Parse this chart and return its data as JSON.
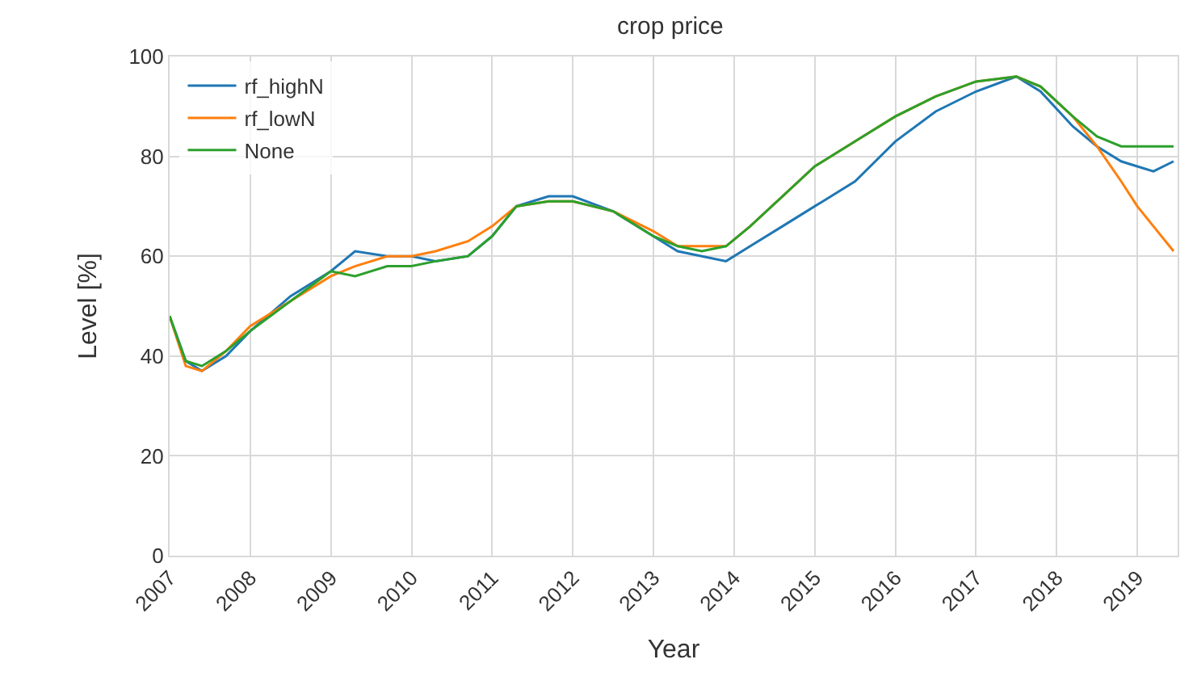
{
  "chart_data": {
    "type": "line",
    "title": "crop price",
    "xlabel": "Year",
    "ylabel": "Level [%]",
    "x": [
      2007.0,
      2007.2,
      2007.4,
      2007.7,
      2008.0,
      2008.5,
      2009.0,
      2009.3,
      2009.7,
      2010.0,
      2010.3,
      2010.7,
      2011.0,
      2011.3,
      2011.7,
      2012.0,
      2012.5,
      2013.0,
      2013.3,
      2013.6,
      2013.9,
      2014.2,
      2014.6,
      2015.0,
      2015.5,
      2016.0,
      2016.5,
      2017.0,
      2017.5,
      2017.8,
      2018.2,
      2018.5,
      2018.8,
      2019.0,
      2019.2,
      2019.45
    ],
    "series": [
      {
        "name": "rf_highN",
        "color": "#1f77b4",
        "values": [
          48,
          39,
          37,
          40,
          45,
          52,
          57,
          61,
          60,
          60,
          59,
          60,
          64,
          70,
          72,
          72,
          69,
          64,
          61,
          60,
          59,
          62,
          66,
          70,
          75,
          83,
          89,
          93,
          96,
          93,
          86,
          82,
          79,
          78,
          77,
          79
        ]
      },
      {
        "name": "rf_lowN",
        "color": "#ff7f0e",
        "values": [
          48,
          38,
          37,
          41,
          46,
          51,
          56,
          58,
          60,
          60,
          61,
          63,
          66,
          70,
          71,
          71,
          69,
          65,
          62,
          62,
          62,
          66,
          72,
          78,
          83,
          88,
          92,
          95,
          96,
          94,
          88,
          82,
          75,
          70,
          66,
          61
        ]
      },
      {
        "name": "None",
        "color": "#2ca02c",
        "values": [
          48,
          39,
          38,
          41,
          45,
          51,
          57,
          56,
          58,
          58,
          59,
          60,
          64,
          70,
          71,
          71,
          69,
          64,
          62,
          61,
          62,
          66,
          72,
          78,
          83,
          88,
          92,
          95,
          96,
          94,
          88,
          84,
          82,
          82,
          82,
          82
        ]
      }
    ],
    "xlim": [
      2007.0,
      2019.5
    ],
    "xticks": [
      2007,
      2008,
      2009,
      2010,
      2011,
      2012,
      2013,
      2014,
      2015,
      2016,
      2017,
      2018,
      2019
    ],
    "ylim": [
      0,
      100
    ],
    "yticks": [
      0,
      20,
      40,
      60,
      80,
      100
    ],
    "grid": true,
    "legend": "top left",
    "marker": "none",
    "line_style": "solid"
  }
}
